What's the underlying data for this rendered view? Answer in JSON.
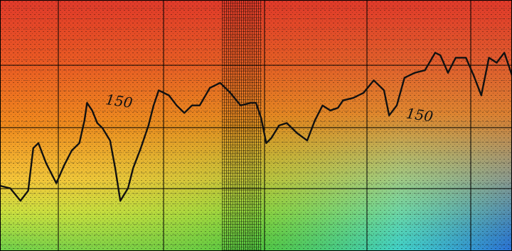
{
  "chart_data": {
    "type": "heatmap",
    "title": "",
    "xlabel": "",
    "ylabel": "",
    "grid": true,
    "colormap": [
      "#2a6fd6",
      "#39d0e0",
      "#3fbf3a",
      "#f4e03a",
      "#f08a1e",
      "#e03a2a"
    ],
    "contour": {
      "level_label": "150",
      "labels": [
        {
          "text": "150",
          "x": 0.205,
          "y": 0.415
        },
        {
          "text": "150",
          "x": 0.792,
          "y": 0.47
        }
      ],
      "points": [
        [
          0.0,
          0.26
        ],
        [
          0.02,
          0.25
        ],
        [
          0.04,
          0.2
        ],
        [
          0.055,
          0.24
        ],
        [
          0.065,
          0.41
        ],
        [
          0.075,
          0.43
        ],
        [
          0.09,
          0.35
        ],
        [
          0.11,
          0.27
        ],
        [
          0.125,
          0.34
        ],
        [
          0.14,
          0.4
        ],
        [
          0.155,
          0.43
        ],
        [
          0.165,
          0.52
        ],
        [
          0.17,
          0.59
        ],
        [
          0.18,
          0.56
        ],
        [
          0.19,
          0.51
        ],
        [
          0.2,
          0.49
        ],
        [
          0.215,
          0.44
        ],
        [
          0.225,
          0.33
        ],
        [
          0.235,
          0.2
        ],
        [
          0.25,
          0.25
        ],
        [
          0.26,
          0.33
        ],
        [
          0.275,
          0.41
        ],
        [
          0.29,
          0.5
        ],
        [
          0.3,
          0.58
        ],
        [
          0.31,
          0.64
        ],
        [
          0.33,
          0.62
        ],
        [
          0.345,
          0.58
        ],
        [
          0.36,
          0.55
        ],
        [
          0.375,
          0.58
        ],
        [
          0.39,
          0.58
        ],
        [
          0.41,
          0.65
        ],
        [
          0.43,
          0.67
        ],
        [
          0.45,
          0.63
        ],
        [
          0.47,
          0.58
        ],
        [
          0.49,
          0.59
        ],
        [
          0.5,
          0.59
        ],
        [
          0.51,
          0.53
        ],
        [
          0.52,
          0.43
        ],
        [
          0.53,
          0.45
        ],
        [
          0.545,
          0.5
        ],
        [
          0.56,
          0.51
        ],
        [
          0.58,
          0.47
        ],
        [
          0.6,
          0.44
        ],
        [
          0.615,
          0.52
        ],
        [
          0.63,
          0.58
        ],
        [
          0.645,
          0.56
        ],
        [
          0.66,
          0.57
        ],
        [
          0.67,
          0.6
        ],
        [
          0.69,
          0.61
        ],
        [
          0.71,
          0.63
        ],
        [
          0.73,
          0.68
        ],
        [
          0.75,
          0.64
        ],
        [
          0.76,
          0.54
        ],
        [
          0.775,
          0.58
        ],
        [
          0.79,
          0.69
        ],
        [
          0.81,
          0.71
        ],
        [
          0.83,
          0.72
        ],
        [
          0.85,
          0.79
        ],
        [
          0.86,
          0.78
        ],
        [
          0.875,
          0.71
        ],
        [
          0.89,
          0.77
        ],
        [
          0.91,
          0.77
        ],
        [
          0.925,
          0.7
        ],
        [
          0.94,
          0.62
        ],
        [
          0.955,
          0.77
        ],
        [
          0.97,
          0.75
        ],
        [
          0.985,
          0.79
        ],
        [
          1.0,
          0.7
        ]
      ]
    }
  }
}
